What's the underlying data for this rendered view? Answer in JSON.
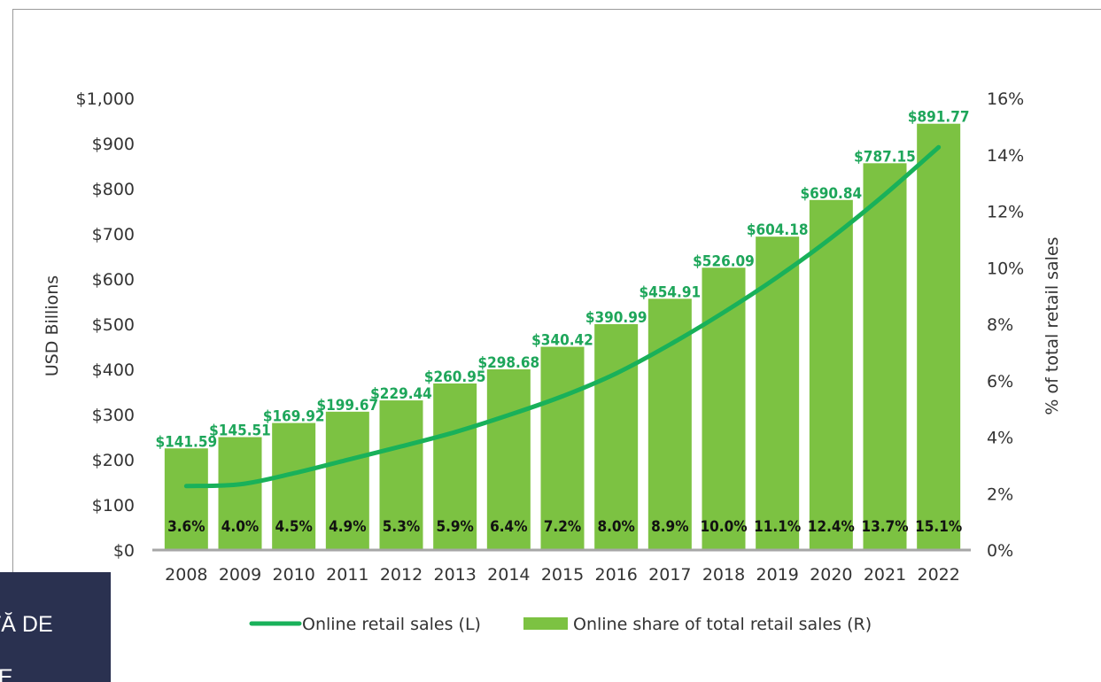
{
  "chart_data": {
    "type": "bar",
    "categories": [
      "2008",
      "2009",
      "2010",
      "2011",
      "2012",
      "2013",
      "2014",
      "2015",
      "2016",
      "2017",
      "2018",
      "2019",
      "2020",
      "2021",
      "2022"
    ],
    "series": [
      {
        "name": "Online retail sales (L)",
        "type": "line",
        "axis": "left",
        "color": "#19b15a",
        "values": [
          141.59,
          145.51,
          169.92,
          199.67,
          229.44,
          260.95,
          298.68,
          340.42,
          390.99,
          454.91,
          526.09,
          604.18,
          690.84,
          787.15,
          891.77
        ],
        "labels": [
          "$141.59",
          "$145.51",
          "$169.92",
          "$199.67",
          "$229.44",
          "$260.95",
          "$298.68",
          "$340.42",
          "$390.99",
          "$454.91",
          "$526.09",
          "$604.18",
          "$690.84",
          "$787.15",
          "$891.77"
        ]
      },
      {
        "name": "Online share of total retail sales (R)",
        "type": "bar",
        "axis": "right",
        "color": "#7cc242",
        "values": [
          3.6,
          4.0,
          4.5,
          4.9,
          5.3,
          5.9,
          6.4,
          7.2,
          8.0,
          8.9,
          10.0,
          11.1,
          12.4,
          13.7,
          15.1
        ],
        "labels": [
          "3.6%",
          "4.0%",
          "4.5%",
          "4.9%",
          "5.3%",
          "5.9%",
          "6.4%",
          "7.2%",
          "8.0%",
          "8.9%",
          "10.0%",
          "11.1%",
          "12.4%",
          "13.7%",
          "15.1%"
        ]
      }
    ],
    "ylabel": "USD Billions",
    "y2label": "% of total retail sales",
    "ylim": [
      0,
      1000
    ],
    "y2lim": [
      0,
      16
    ],
    "yticks": [
      "$0",
      "$100",
      "$200",
      "$300",
      "$400",
      "$500",
      "$600",
      "$700",
      "$800",
      "$900",
      "$1,000"
    ],
    "y2ticks": [
      "0%",
      "2%",
      "4%",
      "6%",
      "8%",
      "10%",
      "12%",
      "14%",
      "16%"
    ],
    "grid": false,
    "legend_position": "bottom",
    "axis_color": "#a6a6a6"
  },
  "badge": {
    "line1": "TĂ DE",
    "line2": "E",
    "color": "#2a3150"
  }
}
